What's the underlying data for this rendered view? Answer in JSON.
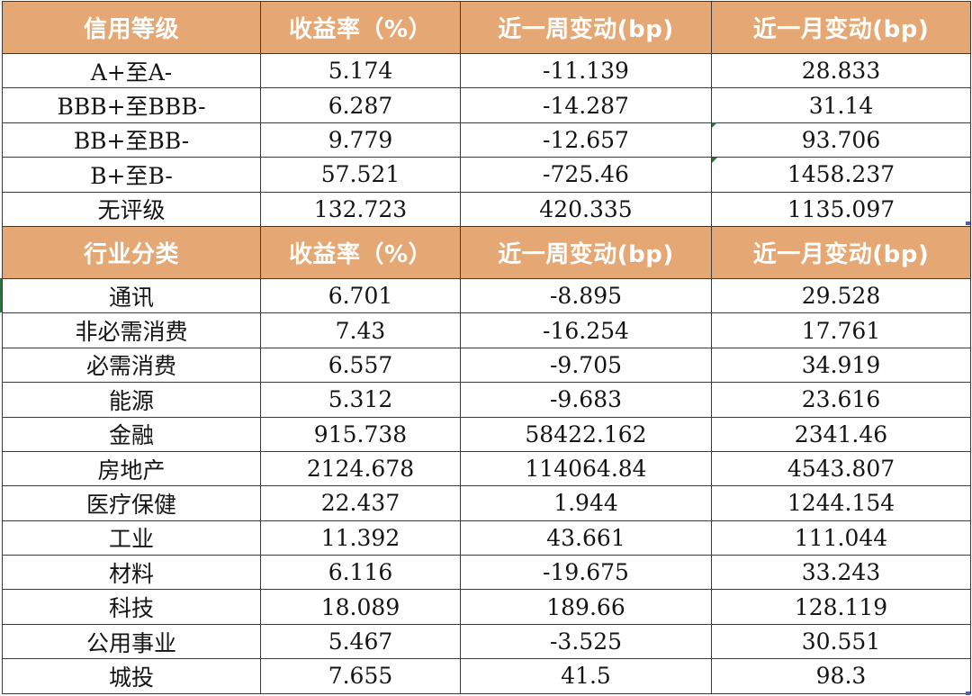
{
  "credit_section": {
    "headers": [
      "信用等级",
      "收益率（%）",
      "近一周变动(bp)",
      "近一月变动(bp)"
    ],
    "rows": [
      [
        "A+至A-",
        "5.174",
        "-11.139",
        "28.833"
      ],
      [
        "BBB+至BBB-",
        "6.287",
        "-14.287",
        "31.14"
      ],
      [
        "BB+至BB-",
        "9.779",
        "-12.657",
        "93.706"
      ],
      [
        "B+至B-",
        "57.521",
        "-725.46",
        "1458.237"
      ],
      [
        "无评级",
        "132.723",
        "420.335",
        "1135.097"
      ]
    ]
  },
  "industry_section": {
    "headers": [
      "行业分类",
      "收益率（%）",
      "近一周变动(bp)",
      "近一月变动(bp)"
    ],
    "rows": [
      [
        "通讯",
        "6.701",
        "-8.895",
        "29.528"
      ],
      [
        "非必需消费",
        "7.43",
        "-16.254",
        "17.761"
      ],
      [
        "必需消费",
        "6.557",
        "-9.705",
        "34.919"
      ],
      [
        "能源",
        "5.312",
        "-9.683",
        "23.616"
      ],
      [
        "金融",
        "915.738",
        "58422.162",
        "2341.46"
      ],
      [
        "房地产",
        "2124.678",
        "114064.84",
        "4543.807"
      ],
      [
        "医疗保健",
        "22.437",
        "1.944",
        "1244.154"
      ],
      [
        "工业",
        "11.392",
        "43.661",
        "111.044"
      ],
      [
        "材料",
        "6.116",
        "-19.675",
        "33.243"
      ],
      [
        "科技",
        "18.089",
        "189.66",
        "128.119"
      ],
      [
        "公用事业",
        "5.467",
        "-3.525",
        "30.551"
      ],
      [
        "城投",
        "7.655",
        "41.5",
        "98.3"
      ]
    ]
  },
  "colors": {
    "header_fill": "#e5a874",
    "header_text": "#ffffff",
    "grid_line": "#3b3b3b",
    "cell_text": "#141414",
    "comment_marker": "#1f7a3a"
  }
}
